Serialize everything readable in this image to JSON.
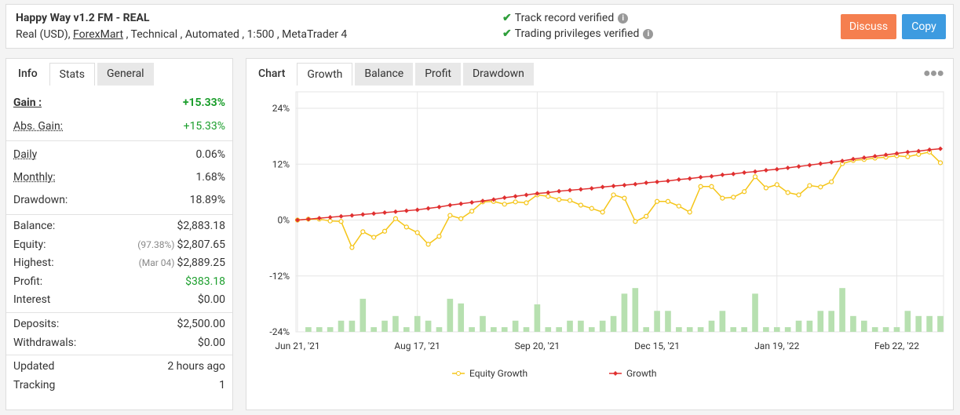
{
  "header": {
    "title": "Happy Way v1.2 FM - REAL",
    "subtitle_prefix": "Real (USD),",
    "subtitle_link": "ForexMart",
    "subtitle_suffix": ", Technical , Automated , 1:500 , MetaTrader 4",
    "verified": [
      "Track record verified",
      "Trading privileges verified"
    ],
    "buttons": [
      "Discuss",
      "Copy"
    ]
  },
  "stats_tabs": [
    "Info",
    "Stats",
    "General"
  ],
  "stats": [
    [
      {
        "label": "Gain :",
        "value": "+15.33%"
      },
      {
        "label": "Abs. Gain:",
        "value": "+15.33%"
      }
    ],
    [
      {
        "label": "Daily",
        "value": "0.06%"
      },
      {
        "label": "Monthly:",
        "value": "1.68%"
      },
      {
        "label": "Drawdown:",
        "value": "18.89%"
      }
    ],
    [
      {
        "label": "Balance:",
        "value": "$2,883.18"
      },
      {
        "label": "Equity:",
        "note": "(97.38%)",
        "value": "$2,807.65"
      },
      {
        "label": "Highest:",
        "note": "(Mar 04)",
        "value": "$2,889.25"
      },
      {
        "label": "Profit:",
        "value": "$383.18"
      },
      {
        "label": "Interest",
        "value": "$0.00"
      }
    ],
    [
      {
        "label": "Deposits:",
        "value": "$2,500.00"
      },
      {
        "label": "Withdrawals:",
        "value": "$0.00"
      }
    ],
    [
      {
        "label": "Updated",
        "value": "2 hours ago"
      },
      {
        "label": "Tracking",
        "value": "1"
      }
    ]
  ],
  "chart_tabs": [
    "Chart",
    "Growth",
    "Balance",
    "Profit",
    "Drawdown"
  ],
  "chart_data": {
    "type": "line",
    "categories": [
      "Jun 21, '21",
      null,
      null,
      null,
      null,
      null,
      null,
      null,
      null,
      null,
      null,
      "Aug 17, '21",
      null,
      null,
      null,
      null,
      null,
      null,
      null,
      null,
      null,
      null,
      "Sep 20, '21",
      null,
      null,
      null,
      null,
      null,
      null,
      null,
      null,
      null,
      null,
      "Dec 15, '21",
      null,
      null,
      null,
      null,
      null,
      null,
      null,
      null,
      null,
      null,
      "Jan 19, '22",
      null,
      null,
      null,
      null,
      null,
      null,
      null,
      null,
      null,
      null,
      "Feb 22, '22",
      null,
      null,
      null,
      null
    ],
    "series": [
      {
        "name": "Equity Growth",
        "color": "#f5c518",
        "values": [
          0,
          0.2,
          0.2,
          -0.2,
          -0.3,
          -5.9,
          -2.5,
          -3.7,
          -2.4,
          0.3,
          -1.5,
          -2.7,
          -5.2,
          -3.5,
          1.0,
          0.3,
          1.9,
          3.9,
          4.0,
          3.4,
          3.9,
          3.7,
          5.4,
          5.1,
          4.4,
          4.2,
          3.2,
          2.5,
          1.7,
          5.4,
          4.7,
          -0.3,
          0.8,
          4.0,
          4.0,
          3.0,
          1.7,
          7.2,
          7.2,
          4.7,
          4.9,
          6.1,
          9.3,
          6.9,
          7.6,
          5.9,
          5.4,
          7.4,
          7.1,
          8.2,
          12.1,
          12.8,
          13.0,
          13.3,
          13.5,
          13.8,
          13.6,
          14.1,
          14.6,
          12.3
        ]
      },
      {
        "name": "Growth",
        "color": "#e03030",
        "values": [
          0,
          0.2,
          0.4,
          0.6,
          0.8,
          1.0,
          1.2,
          1.4,
          1.6,
          1.8,
          2.0,
          2.2,
          2.5,
          2.8,
          3.2,
          3.5,
          3.8,
          4.1,
          4.4,
          4.8,
          5.1,
          5.4,
          5.7,
          5.9,
          6.2,
          6.4,
          6.6,
          6.8,
          7.1,
          7.3,
          7.5,
          7.7,
          8.0,
          8.2,
          8.4,
          8.7,
          8.9,
          9.2,
          9.4,
          9.7,
          9.9,
          10.2,
          10.4,
          10.7,
          10.9,
          11.2,
          11.5,
          11.8,
          12.1,
          12.4,
          12.7,
          13.1,
          13.4,
          13.7,
          14.0,
          14.3,
          14.6,
          14.8,
          15.1,
          15.3
        ]
      }
    ],
    "bars": {
      "color": "#b7e0b0",
      "values": [
        null,
        -23.0,
        -23.0,
        -23.0,
        -21.6,
        -21.6,
        -16.9,
        -23.0,
        -21.6,
        -20.6,
        -23.0,
        -20.6,
        -21.6,
        -23.0,
        -16.9,
        -17.9,
        -23.0,
        -20.6,
        -23.0,
        -23.0,
        -21.6,
        -23.0,
        -18.1,
        -23.0,
        -23.0,
        -21.6,
        -21.6,
        -23.0,
        -21.6,
        -20.6,
        -15.8,
        -14.6,
        -23.0,
        -19.5,
        -19.5,
        -23.0,
        -23.0,
        -23.0,
        -21.6,
        -19.5,
        -23.0,
        -23.0,
        -15.8,
        -23.0,
        -23.0,
        -23.0,
        -21.6,
        -21.6,
        -19.5,
        -19.5,
        -14.6,
        -20.6,
        -21.6,
        -23.0,
        -23.0,
        -23.0,
        -19.5,
        -20.6,
        -20.6,
        -20.6
      ]
    },
    "ylim": [
      -24,
      24
    ],
    "yticks": [
      {
        "value": 24,
        "label": "24%"
      },
      {
        "value": 12,
        "label": "12%"
      },
      {
        "value": 0,
        "label": "0%"
      },
      {
        "value": -12,
        "label": "-12%"
      },
      {
        "value": -24,
        "label": "-24%"
      }
    ],
    "grid": true
  }
}
